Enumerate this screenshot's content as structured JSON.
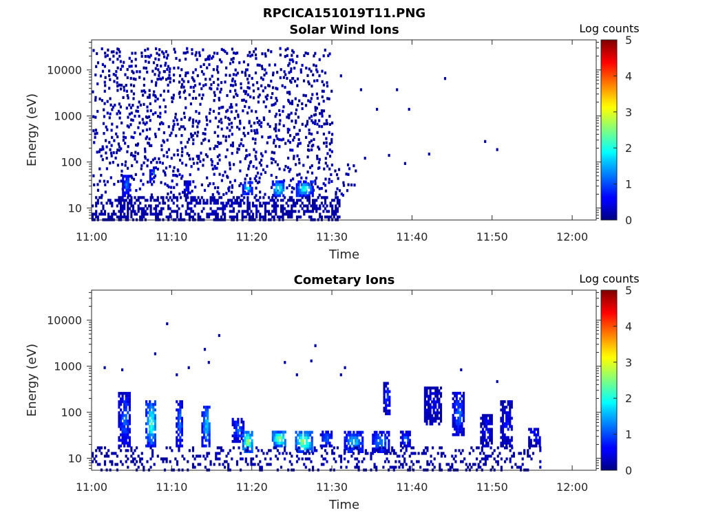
{
  "figure": {
    "title": "RPCICA151019T11.PNG",
    "colormap": "jet",
    "colors": {
      "background": "#ffffff",
      "axis": "#262626",
      "title": "#000000"
    }
  },
  "chart_data": [
    {
      "type": "heatmap",
      "title": "Solar Wind Ions",
      "xlabel": "Time",
      "ylabel": "Energy (eV)",
      "x_ticks": [
        "11:00",
        "11:10",
        "11:20",
        "11:30",
        "11:40",
        "11:50",
        "12:00"
      ],
      "x_range_minutes": [
        0,
        63
      ],
      "y_ticks": [
        "10",
        "100",
        "1000",
        "10000"
      ],
      "y_scale": "log",
      "y_range": [
        5.5,
        45000
      ],
      "colorbar": {
        "title": "Log counts",
        "ticks": [
          "0",
          "1",
          "2",
          "3",
          "4",
          "5"
        ],
        "range": [
          0,
          5
        ]
      },
      "noise": {
        "background": {
          "t_range": [
            0,
            30
          ],
          "e_range": [
            100,
            30000
          ],
          "density": 0.22,
          "value": [
            0.05,
            0.35
          ]
        },
        "lower_background": {
          "t_range": [
            0,
            33
          ],
          "e_range": [
            20,
            100
          ],
          "density": 0.18,
          "value": [
            0.05,
            0.4
          ]
        },
        "scattered": [
          [
            31,
            8000
          ],
          [
            33.5,
            4000
          ],
          [
            35.5,
            1500
          ],
          [
            38,
            4000
          ],
          [
            39.5,
            1500
          ],
          [
            44,
            7000
          ],
          [
            49,
            300
          ],
          [
            50.5,
            200
          ],
          [
            42,
            160
          ],
          [
            39,
            100
          ],
          [
            37,
            150
          ],
          [
            34,
            130
          ]
        ]
      },
      "features": [
        {
          "t": [
            3.8,
            4.8
          ],
          "e": [
            20,
            60
          ],
          "value": 1.2
        },
        {
          "t": [
            7.2,
            7.8
          ],
          "e": [
            40,
            80
          ],
          "value": 1.5
        },
        {
          "t": [
            11.5,
            12.2
          ],
          "e": [
            20,
            40
          ],
          "value": 0.9
        },
        {
          "t": [
            18.8,
            19.9
          ],
          "e": [
            22,
            40
          ],
          "value": 2.0
        },
        {
          "t": [
            22.5,
            24.0
          ],
          "e": [
            20,
            40
          ],
          "value": 2.3
        },
        {
          "t": [
            25.5,
            27.5
          ],
          "e": [
            20,
            40
          ],
          "value": 2.2
        },
        {
          "t": [
            0,
            31
          ],
          "e": [
            6,
            20
          ],
          "value": 0.3,
          "density": 0.45
        }
      ]
    },
    {
      "type": "heatmap",
      "title": "Cometary Ions",
      "xlabel": "Time",
      "ylabel": "Energy (eV)",
      "x_ticks": [
        "11:00",
        "11:10",
        "11:20",
        "11:30",
        "11:40",
        "11:50",
        "12:00"
      ],
      "x_range_minutes": [
        0,
        63
      ],
      "y_ticks": [
        "10",
        "100",
        "1000",
        "10000"
      ],
      "y_scale": "log",
      "y_range": [
        5.5,
        45000
      ],
      "colorbar": {
        "title": "Log counts",
        "ticks": [
          "0",
          "1",
          "2",
          "3",
          "4",
          "5"
        ],
        "range": [
          0,
          5
        ]
      },
      "noise": {
        "scattered": [
          [
            9.3,
            9000
          ],
          [
            15.8,
            5000
          ],
          [
            14,
            2500
          ],
          [
            7.8,
            2000
          ],
          [
            12,
            1000
          ],
          [
            3.7,
            900
          ],
          [
            14.5,
            1300
          ],
          [
            24,
            1300
          ],
          [
            27.3,
            1400
          ],
          [
            27.8,
            3000
          ],
          [
            31.5,
            1000
          ],
          [
            46,
            900
          ],
          [
            1.5,
            1000
          ],
          [
            10.5,
            700
          ],
          [
            25.5,
            700
          ],
          [
            31,
            700
          ],
          [
            50.5,
            500
          ]
        ]
      },
      "features": [
        {
          "t": [
            3.3,
            4.8
          ],
          "e": [
            20,
            300
          ],
          "value": 1.2
        },
        {
          "t": [
            6.7,
            8.0
          ],
          "e": [
            20,
            200
          ],
          "value": 2.3
        },
        {
          "t": [
            10.5,
            11.3
          ],
          "e": [
            20,
            200
          ],
          "value": 1.3
        },
        {
          "t": [
            13.7,
            14.8
          ],
          "e": [
            20,
            150
          ],
          "value": 1.8
        },
        {
          "t": [
            17.5,
            19.0
          ],
          "e": [
            25,
            80
          ],
          "value": 1.3
        },
        {
          "t": [
            18.8,
            20.0
          ],
          "e": [
            15,
            40
          ],
          "value": 3.0
        },
        {
          "t": [
            22.5,
            24.2
          ],
          "e": [
            20,
            40
          ],
          "value": 3.0
        },
        {
          "t": [
            25.4,
            27.4
          ],
          "e": [
            15,
            40
          ],
          "value": 2.9
        },
        {
          "t": [
            28.5,
            30.0
          ],
          "e": [
            20,
            40
          ],
          "value": 1.3
        },
        {
          "t": [
            31.5,
            33.8
          ],
          "e": [
            15,
            40
          ],
          "value": 1.8
        },
        {
          "t": [
            35.0,
            37.0
          ],
          "e": [
            15,
            40
          ],
          "value": 1.5
        },
        {
          "t": [
            36.4,
            37.2
          ],
          "e": [
            100,
            500
          ],
          "value": 0.9
        },
        {
          "t": [
            38.5,
            39.8
          ],
          "e": [
            20,
            40
          ],
          "value": 1.2
        },
        {
          "t": [
            41.5,
            43.5
          ],
          "e": [
            60,
            400
          ],
          "value": 0.6
        },
        {
          "t": [
            45.0,
            46.5
          ],
          "e": [
            35,
            300
          ],
          "value": 1.2
        },
        {
          "t": [
            48.5,
            50.0
          ],
          "e": [
            20,
            100
          ],
          "value": 0.7
        },
        {
          "t": [
            51.0,
            52.5
          ],
          "e": [
            20,
            200
          ],
          "value": 0.7
        },
        {
          "t": [
            54.5,
            56.0
          ],
          "e": [
            20,
            50
          ],
          "value": 0.8
        },
        {
          "t": [
            0,
            56
          ],
          "e": [
            6,
            20
          ],
          "value": 0.3,
          "density": 0.2
        }
      ]
    }
  ]
}
